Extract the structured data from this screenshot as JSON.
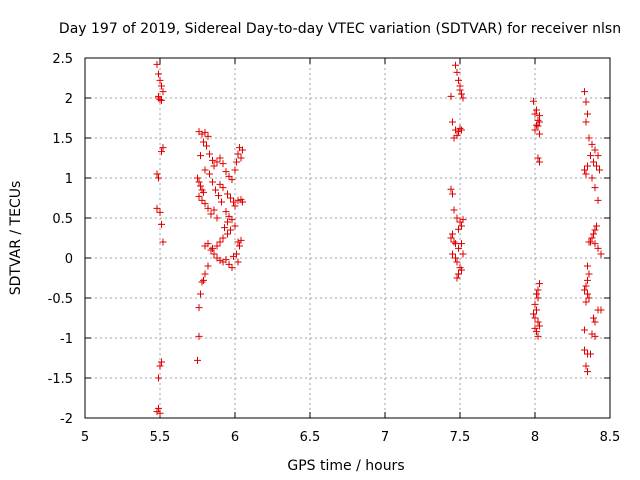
{
  "chart_data": {
    "type": "scatter",
    "title": "Day 197 of 2019, Sidereal Day-to-day VTEC variation (SDTVAR) for receiver nlsn",
    "xlabel": "GPS time / hours",
    "ylabel": "SDTVAR / TECUs",
    "xlim": [
      5,
      8.5
    ],
    "ylim": [
      -2,
      2.5
    ],
    "xticks": [
      "5",
      "5.5",
      "6",
      "6.5",
      "7",
      "7.5",
      "8",
      "8.5"
    ],
    "yticks": [
      "-2",
      "-1.5",
      "-1",
      "-0.5",
      "0",
      "0.5",
      "1",
      "1.5",
      "2",
      "2.5"
    ],
    "grid": true,
    "marker": "+",
    "color": "#dd0000",
    "series": [
      {
        "name": "SDTVAR",
        "points": [
          [
            5.48,
            2.42
          ],
          [
            5.49,
            2.3
          ],
          [
            5.5,
            2.22
          ],
          [
            5.51,
            2.15
          ],
          [
            5.52,
            2.08
          ],
          [
            5.49,
            2.02
          ],
          [
            5.5,
            1.98
          ],
          [
            5.51,
            1.97
          ],
          [
            5.49,
            2.0
          ],
          [
            5.52,
            1.38
          ],
          [
            5.51,
            1.33
          ],
          [
            5.48,
            1.05
          ],
          [
            5.49,
            1.0
          ],
          [
            5.48,
            0.62
          ],
          [
            5.5,
            0.57
          ],
          [
            5.51,
            0.42
          ],
          [
            5.52,
            0.2
          ],
          [
            5.51,
            -1.3
          ],
          [
            5.5,
            -1.35
          ],
          [
            5.49,
            -1.5
          ],
          [
            5.49,
            -1.88
          ],
          [
            5.48,
            -1.92
          ],
          [
            5.5,
            -1.94
          ],
          [
            5.76,
            1.58
          ],
          [
            5.78,
            1.55
          ],
          [
            5.8,
            1.57
          ],
          [
            5.82,
            1.52
          ],
          [
            5.79,
            1.45
          ],
          [
            5.77,
            1.28
          ],
          [
            5.81,
            1.4
          ],
          [
            5.83,
            1.3
          ],
          [
            5.85,
            1.22
          ],
          [
            5.75,
            1.0
          ],
          [
            5.76,
            0.95
          ],
          [
            5.77,
            0.9
          ],
          [
            5.78,
            0.85
          ],
          [
            5.79,
            0.82
          ],
          [
            5.76,
            0.77
          ],
          [
            5.78,
            0.72
          ],
          [
            5.8,
            0.68
          ],
          [
            5.82,
            0.62
          ],
          [
            5.84,
            0.55
          ],
          [
            5.86,
            0.6
          ],
          [
            5.88,
            0.5
          ],
          [
            5.8,
            1.1
          ],
          [
            5.83,
            1.05
          ],
          [
            5.86,
            1.15
          ],
          [
            5.88,
            1.2
          ],
          [
            5.9,
            1.25
          ],
          [
            5.92,
            1.18
          ],
          [
            5.94,
            1.08
          ],
          [
            5.96,
            1.02
          ],
          [
            5.98,
            0.98
          ],
          [
            5.9,
            0.92
          ],
          [
            5.92,
            0.88
          ],
          [
            5.95,
            0.8
          ],
          [
            5.97,
            0.75
          ],
          [
            5.99,
            0.7
          ],
          [
            6.0,
            0.65
          ],
          [
            5.94,
            0.58
          ],
          [
            5.96,
            0.52
          ],
          [
            5.98,
            0.48
          ],
          [
            6.0,
            0.4
          ],
          [
            5.85,
            0.95
          ],
          [
            5.87,
            0.85
          ],
          [
            5.89,
            0.78
          ],
          [
            5.91,
            0.7
          ],
          [
            5.95,
            0.3
          ],
          [
            5.92,
            0.25
          ],
          [
            5.9,
            0.2
          ],
          [
            5.88,
            0.15
          ],
          [
            5.85,
            0.12
          ],
          [
            5.82,
            0.18
          ],
          [
            5.8,
            0.15
          ],
          [
            5.84,
            0.1
          ],
          [
            5.86,
            0.05
          ],
          [
            5.88,
            0.0
          ],
          [
            5.9,
            -0.03
          ],
          [
            5.92,
            -0.05
          ],
          [
            5.94,
            -0.02
          ],
          [
            5.96,
            -0.08
          ],
          [
            5.98,
            -0.12
          ],
          [
            5.82,
            -0.1
          ],
          [
            5.8,
            -0.2
          ],
          [
            5.78,
            -0.3
          ],
          [
            5.79,
            -0.28
          ],
          [
            5.77,
            -0.45
          ],
          [
            5.76,
            -0.62
          ],
          [
            5.76,
            -0.98
          ],
          [
            5.75,
            -1.28
          ],
          [
            6.0,
            1.1
          ],
          [
            6.02,
            1.3
          ],
          [
            6.03,
            1.38
          ],
          [
            6.05,
            1.35
          ],
          [
            6.04,
            1.25
          ],
          [
            6.01,
            1.2
          ],
          [
            6.02,
            0.72
          ],
          [
            6.04,
            0.73
          ],
          [
            6.05,
            0.7
          ],
          [
            6.02,
            0.2
          ],
          [
            6.03,
            0.15
          ],
          [
            6.04,
            0.22
          ],
          [
            6.01,
            0.05
          ],
          [
            6.02,
            -0.05
          ],
          [
            5.99,
            0.02
          ],
          [
            5.97,
            0.35
          ],
          [
            5.95,
            0.45
          ],
          [
            5.93,
            0.38
          ],
          [
            7.47,
            2.41
          ],
          [
            7.48,
            2.32
          ],
          [
            7.49,
            2.22
          ],
          [
            7.5,
            2.15
          ],
          [
            7.5,
            2.1
          ],
          [
            7.51,
            2.05
          ],
          [
            7.52,
            2.0
          ],
          [
            7.44,
            2.02
          ],
          [
            7.45,
            1.7
          ],
          [
            7.47,
            1.6
          ],
          [
            7.49,
            1.58
          ],
          [
            7.5,
            1.62
          ],
          [
            7.51,
            1.6
          ],
          [
            7.48,
            1.53
          ],
          [
            7.46,
            1.5
          ],
          [
            7.44,
            0.86
          ],
          [
            7.45,
            0.8
          ],
          [
            7.46,
            0.6
          ],
          [
            7.48,
            0.5
          ],
          [
            7.5,
            0.45
          ],
          [
            7.52,
            0.48
          ],
          [
            7.51,
            0.4
          ],
          [
            7.49,
            0.36
          ],
          [
            7.45,
            0.3
          ],
          [
            7.44,
            0.25
          ],
          [
            7.46,
            0.2
          ],
          [
            7.47,
            0.18
          ],
          [
            7.49,
            0.12
          ],
          [
            7.51,
            0.18
          ],
          [
            7.52,
            0.05
          ],
          [
            7.45,
            0.05
          ],
          [
            7.47,
            0.0
          ],
          [
            7.48,
            -0.05
          ],
          [
            7.5,
            -0.12
          ],
          [
            7.51,
            -0.15
          ],
          [
            7.49,
            -0.2
          ],
          [
            7.48,
            -0.25
          ],
          [
            7.99,
            1.96
          ],
          [
            8.01,
            1.85
          ],
          [
            8.0,
            1.8
          ],
          [
            8.03,
            1.78
          ],
          [
            8.02,
            1.72
          ],
          [
            8.03,
            1.7
          ],
          [
            8.01,
            1.66
          ],
          [
            8.02,
            1.65
          ],
          [
            8.0,
            1.6
          ],
          [
            8.03,
            1.55
          ],
          [
            8.02,
            1.25
          ],
          [
            8.03,
            1.2
          ],
          [
            8.03,
            -0.32
          ],
          [
            8.02,
            -0.4
          ],
          [
            8.01,
            -0.45
          ],
          [
            8.02,
            -0.5
          ],
          [
            8.0,
            -0.58
          ],
          [
            8.01,
            -0.65
          ],
          [
            7.99,
            -0.7
          ],
          [
            8.0,
            -0.75
          ],
          [
            8.02,
            -0.8
          ],
          [
            8.03,
            -0.85
          ],
          [
            8.0,
            -0.88
          ],
          [
            8.01,
            -0.92
          ],
          [
            8.02,
            -0.98
          ],
          [
            8.33,
            2.08
          ],
          [
            8.34,
            1.95
          ],
          [
            8.35,
            1.8
          ],
          [
            8.34,
            1.7
          ],
          [
            8.36,
            1.5
          ],
          [
            8.38,
            1.42
          ],
          [
            8.4,
            1.35
          ],
          [
            8.42,
            1.28
          ],
          [
            8.37,
            1.28
          ],
          [
            8.39,
            1.2
          ],
          [
            8.41,
            1.15
          ],
          [
            8.43,
            1.1
          ],
          [
            8.35,
            1.15
          ],
          [
            8.33,
            1.1
          ],
          [
            8.34,
            1.05
          ],
          [
            8.38,
            1.0
          ],
          [
            8.4,
            0.88
          ],
          [
            8.42,
            0.72
          ],
          [
            8.41,
            0.4
          ],
          [
            8.4,
            0.35
          ],
          [
            8.39,
            0.3
          ],
          [
            8.38,
            0.25
          ],
          [
            8.37,
            0.2
          ],
          [
            8.36,
            0.2
          ],
          [
            8.4,
            0.18
          ],
          [
            8.42,
            0.12
          ],
          [
            8.44,
            0.05
          ],
          [
            8.35,
            -0.1
          ],
          [
            8.36,
            -0.2
          ],
          [
            8.35,
            -0.28
          ],
          [
            8.34,
            -0.35
          ],
          [
            8.33,
            -0.4
          ],
          [
            8.35,
            -0.45
          ],
          [
            8.36,
            -0.5
          ],
          [
            8.34,
            -0.55
          ],
          [
            8.42,
            -0.65
          ],
          [
            8.44,
            -0.65
          ],
          [
            8.39,
            -0.75
          ],
          [
            8.4,
            -0.8
          ],
          [
            8.33,
            -0.9
          ],
          [
            8.38,
            -0.95
          ],
          [
            8.4,
            -0.98
          ],
          [
            8.33,
            -1.15
          ],
          [
            8.35,
            -1.2
          ],
          [
            8.37,
            -1.2
          ],
          [
            8.34,
            -1.35
          ],
          [
            8.35,
            -1.42
          ]
        ]
      }
    ]
  }
}
